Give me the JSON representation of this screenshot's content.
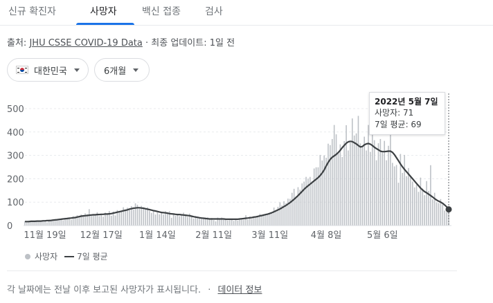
{
  "tabs": [
    {
      "label": "신규 확진자"
    },
    {
      "label": "사망자"
    },
    {
      "label": "백신 접종"
    },
    {
      "label": "검사"
    }
  ],
  "source": {
    "prefix": "출처:",
    "link": "JHU CSSE COVID-19 Data",
    "separator": "·",
    "update": "최종 업데이트: 1일 전"
  },
  "filters": {
    "country": "대한민국",
    "period": "6개월"
  },
  "tooltip": {
    "title": "2022년 5월 7일",
    "deaths_line": "사망자: 71",
    "avg_line": "7일 평균: 69"
  },
  "legend": {
    "bars": "사망자",
    "line": "7일 평균"
  },
  "footnote": {
    "text": "각 날짜에는 전날 이후 보고된 사망자가 표시됩니다.",
    "separator": "·",
    "link": "데이터 정보"
  },
  "colors": {
    "bars": "#bdc1c6",
    "line": "#3c4043",
    "grid": "#e8eaed",
    "accent": "#1a73e8"
  },
  "chart_data": {
    "type": "bar",
    "ylim": [
      0,
      500
    ],
    "yticks": [
      "500",
      "400",
      "300",
      "200",
      "100",
      "0"
    ],
    "xtick_labels": [
      "11월 19일",
      "12월 17일",
      "1월 14일",
      "2월 11일",
      "3월 11일",
      "4월 8일",
      "5월 6일"
    ],
    "grid": "horizontal dashed",
    "series": [
      {
        "name": "사망자",
        "type": "bar",
        "values": [
          18,
          15,
          21,
          16,
          19,
          18,
          20,
          22,
          16,
          21,
          22,
          14,
          25,
          22,
          27,
          25,
          27,
          24,
          29,
          22,
          33,
          29,
          34,
          25,
          40,
          35,
          44,
          42,
          47,
          45,
          52,
          48,
          70,
          44,
          48,
          45,
          57,
          40,
          49,
          38,
          55,
          51,
          62,
          42,
          60,
          43,
          66,
          56,
          64,
          78,
          62,
          76,
          71,
          83,
          68,
          95,
          89,
          72,
          84,
          77,
          72,
          78,
          62,
          54,
          64,
          47,
          56,
          48,
          54,
          47,
          61,
          55,
          61,
          33,
          51,
          42,
          45,
          40,
          47,
          55,
          43,
          37,
          51,
          42,
          30,
          41,
          32,
          35,
          31,
          28,
          34,
          35,
          26,
          32,
          23,
          18,
          34,
          27,
          34,
          25,
          29,
          22,
          23,
          27,
          20,
          25,
          21,
          29,
          31,
          25,
          44,
          26,
          39,
          28,
          40,
          33,
          39,
          50,
          41,
          49,
          50,
          50,
          54,
          51,
          77,
          66,
          80,
          99,
          86,
          104,
          96,
          115,
          114,
          140,
          157,
          125,
          164,
          153,
          180,
          188,
          208,
          200,
          208,
          190,
          244,
          249,
          249,
          302,
          278,
          300,
          290,
          350,
          344,
          370,
          430,
          390,
          316,
          347,
          293,
          361,
          429,
          321,
          355,
          458,
          385,
          394,
          469,
          351,
          337,
          380,
          321,
          430,
          315,
          402,
          365,
          279,
          352,
          370,
          312,
          362,
          279,
          341,
          395,
          268,
          253,
          259,
          183,
          306,
          225,
          302,
          211,
          246,
          206,
          188,
          163,
          175,
          144,
          205,
          158,
          130,
          190,
          148,
          258,
          112,
          140,
          99,
          96,
          113,
          90,
          64,
          57,
          71
        ]
      },
      {
        "name": "7일 평균",
        "type": "line",
        "values": [
          17,
          17,
          17,
          18,
          18,
          18,
          19,
          19,
          19,
          20,
          20,
          21,
          21,
          22,
          23,
          24,
          25,
          26,
          27,
          28,
          29,
          30,
          31,
          32,
          33,
          34,
          36,
          38,
          40,
          41,
          42,
          43,
          44,
          45,
          46,
          46,
          47,
          47,
          48,
          48,
          49,
          49,
          50,
          51,
          53,
          55,
          57,
          59,
          61,
          63,
          65,
          67,
          70,
          72,
          74,
          75,
          76,
          76,
          75,
          74,
          72,
          70,
          68,
          66,
          64,
          62,
          60,
          58,
          56,
          55,
          54,
          53,
          51,
          50,
          49,
          48,
          47,
          47,
          46,
          45,
          44,
          43,
          42,
          40,
          38,
          36,
          35,
          33,
          32,
          31,
          30,
          29,
          28,
          28,
          28,
          28,
          28,
          28,
          28,
          28,
          27,
          27,
          27,
          27,
          27,
          27,
          27,
          28,
          29,
          30,
          31,
          32,
          33,
          34,
          36,
          37,
          39,
          41,
          43,
          45,
          47,
          49,
          52,
          55,
          59,
          63,
          67,
          71,
          76,
          81,
          86,
          92,
          98,
          105,
          112,
          120,
          128,
          137,
          146,
          155,
          163,
          170,
          177,
          184,
          191,
          198,
          205,
          214,
          225,
          238,
          255,
          270,
          283,
          292,
          298,
          304,
          312,
          322,
          333,
          343,
          352,
          358,
          360,
          359,
          354,
          349,
          342,
          336,
          338,
          345,
          349,
          351,
          348,
          342,
          335,
          329,
          324,
          318,
          316,
          316,
          317,
          318,
          318,
          313,
          303,
          290,
          277,
          263,
          251,
          240,
          230,
          220,
          210,
          200,
          190,
          180,
          170,
          160,
          152,
          145,
          140,
          134,
          128,
          122,
          115,
          109,
          104,
          100,
          95,
          88,
          80,
          69
        ]
      }
    ]
  }
}
